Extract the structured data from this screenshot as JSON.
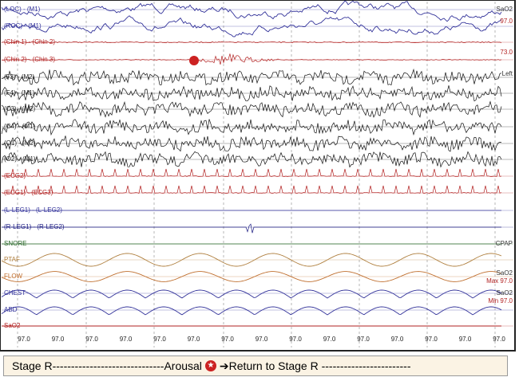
{
  "channels": [
    "(LOC) - (M1)",
    "(ROC) - (M1)",
    "(Chin 1) - (Chin 2)",
    "(Chin 2) - (Chin 3)",
    "(F3) - (M2)",
    "(F4) - (M1)",
    "(C3) - (M2)",
    "(C4) - (M1)",
    "(O1) - (M2)",
    "(O2) - (M1)",
    "(ECG2)",
    "(ECG1) - (ECG3)",
    "(L-LEG1) - (L-LEG2)",
    "(R-LEG1) - (R-LEG2)",
    "SNORE",
    "PTAF",
    "FLOW",
    "CHEST",
    "ABD",
    "SaO2"
  ],
  "right_labels": {
    "sao2_top": "SaO2",
    "sao2_top_value": "97.0",
    "pulse_value": "73.0",
    "position": "Left",
    "mode": "CPAP",
    "sao2_max_title": "SaO2",
    "sao2_max": "Max 97.0",
    "sao2_min_title": "SaO2",
    "sao2_min": "Min 97.0"
  },
  "sao2_readout": [
    "97.0",
    "97.0",
    "97.0",
    "97.0",
    "97.0",
    "97.0",
    "97.0",
    "97.0",
    "97.0",
    "97.0",
    "97.0",
    "97.0",
    "97.0",
    "97.0",
    "97.0"
  ],
  "caption": {
    "stage": "Stage R------------------------------Arousal",
    "return": "➔Return to Stage R ------------------------"
  }
}
